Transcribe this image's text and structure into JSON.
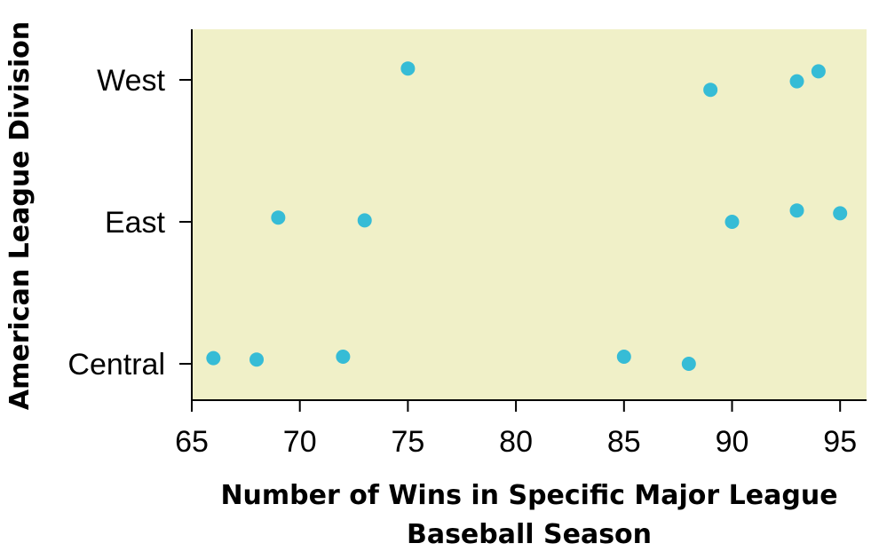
{
  "chart_data": {
    "type": "scatter",
    "title": "",
    "xlabel_lines": [
      "Number of Wins in Specific Major League",
      "Baseball Season"
    ],
    "ylabel": "American League Division",
    "xlim": [
      65,
      96.2
    ],
    "x_ticks": [
      65,
      70,
      75,
      80,
      85,
      90,
      95
    ],
    "categories": [
      "Central",
      "East",
      "West"
    ],
    "grid": false,
    "colors": {
      "plot_background": "#f0f0c8",
      "point": "#36bcd6",
      "axis": "#000000"
    },
    "series": [
      {
        "category": "West",
        "points": [
          {
            "x": 75,
            "jitter": 0.08
          },
          {
            "x": 89,
            "jitter": -0.07
          },
          {
            "x": 93,
            "jitter": -0.01
          },
          {
            "x": 94,
            "jitter": 0.06
          }
        ]
      },
      {
        "category": "East",
        "points": [
          {
            "x": 69,
            "jitter": 0.03
          },
          {
            "x": 73,
            "jitter": 0.01
          },
          {
            "x": 90,
            "jitter": 0.0
          },
          {
            "x": 93,
            "jitter": 0.08
          },
          {
            "x": 95,
            "jitter": 0.06
          }
        ]
      },
      {
        "category": "Central",
        "points": [
          {
            "x": 66,
            "jitter": 0.04
          },
          {
            "x": 68,
            "jitter": 0.03
          },
          {
            "x": 72,
            "jitter": 0.05
          },
          {
            "x": 85,
            "jitter": 0.05
          },
          {
            "x": 88,
            "jitter": 0.0
          }
        ]
      }
    ]
  }
}
